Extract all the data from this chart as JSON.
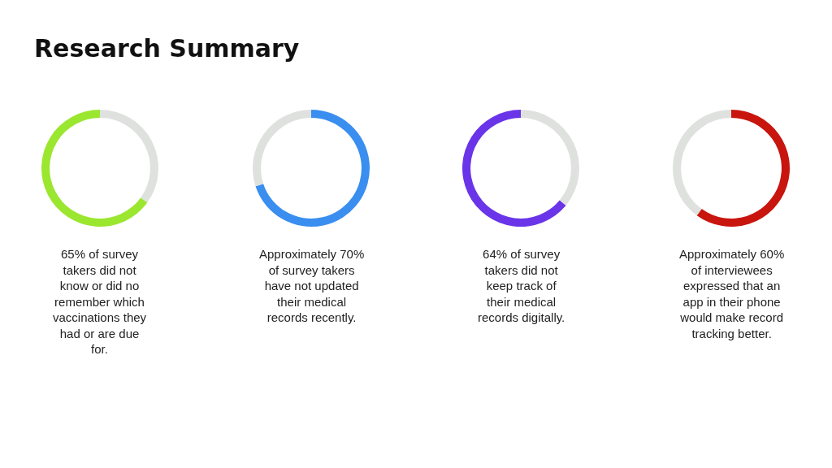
{
  "chart_data": [
    {
      "type": "donut",
      "title": "Research Summary",
      "categories": [
        null,
        null
      ],
      "values": [
        35,
        65
      ],
      "colors": [
        "#dfe1df",
        "#9be62f"
      ],
      "annotations": [
        "65% of survey takers did not know or did no remember which vaccinations they had or are due for."
      ]
    },
    {
      "type": "donut",
      "categories": [
        null,
        null
      ],
      "values": [
        70,
        30
      ],
      "colors": [
        "#3a8ef0",
        "#dfe1df"
      ],
      "annotations": [
        "Approximately 70% of survey takers have not updated their medical records recently."
      ]
    },
    {
      "type": "donut",
      "categories": [
        null,
        null
      ],
      "values": [
        36,
        64
      ],
      "colors": [
        "#dfe1df",
        "#6a35e8"
      ],
      "annotations": [
        "64% of survey takers did not keep track of their medical records digitally."
      ]
    },
    {
      "type": "donut",
      "categories": [
        null,
        null
      ],
      "values": [
        60,
        40
      ],
      "colors": [
        "#c8150e",
        "#dfe1df"
      ],
      "annotations": [
        "Approximately 60% of interviewees expressed that an app in their phone would make record tracking better."
      ]
    }
  ]
}
